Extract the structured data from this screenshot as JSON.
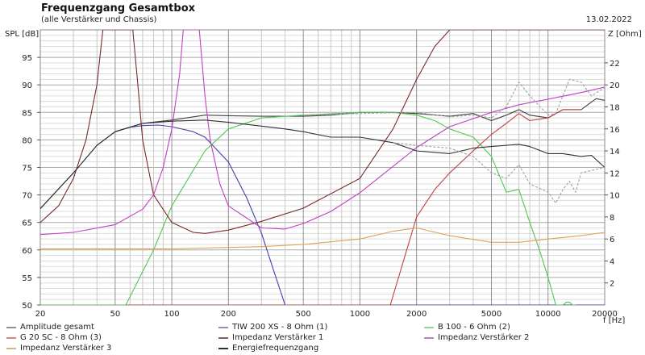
{
  "chart_data": {
    "type": "line",
    "title": "Frequenzgang Gesamtbox",
    "subtitle": "(alle Verstärker und Chassis)",
    "date": "13.02.2022",
    "ylabel": "SPL [dB]",
    "y2label": "Z [Ohm]",
    "xlabel": "f [Hz]",
    "xscale": "log",
    "xlim": [
      20,
      20000
    ],
    "ylim": [
      50,
      100
    ],
    "y2lim": [
      0,
      25
    ],
    "grid": true,
    "xticks": [
      "20",
      "50",
      "100",
      "200",
      "500",
      "1000",
      "2000",
      "5000",
      "10000",
      "20000"
    ],
    "yticks": [
      "50",
      "55",
      "60",
      "65",
      "70",
      "75",
      "80",
      "85",
      "90",
      "95"
    ],
    "y2ticks": [
      "2",
      "4",
      "6",
      "8",
      "10",
      "12",
      "14",
      "16",
      "18",
      "20",
      "22"
    ],
    "legend_position": "bottom",
    "series": [
      {
        "name": "Amplitude gesamt",
        "axis": "left",
        "color": "#404040",
        "legend_color": "#909090",
        "x": [
          20,
          30,
          40,
          50,
          70,
          100,
          150,
          200,
          300,
          500,
          700,
          1000,
          1500,
          2000,
          3000,
          4000,
          5000,
          6000,
          7000,
          8000,
          10000,
          12000,
          15000,
          18000,
          20000
        ],
        "y": [
          67.5,
          74,
          79,
          81.5,
          83,
          83.6,
          84.5,
          84.4,
          84.3,
          84.3,
          84.5,
          85,
          85,
          84.8,
          84.3,
          84.8,
          83.5,
          84.5,
          85.5,
          84.5,
          84,
          85.5,
          85.5,
          87.5,
          87.2
        ]
      },
      {
        "name": "TIW 200 XS - 8 Ohm (1)",
        "axis": "left",
        "color": "#4040b0",
        "legend_color": "#9090c0",
        "x": [
          50,
          60,
          70,
          85,
          100,
          130,
          150,
          200,
          250,
          300,
          350,
          400,
          20000
        ],
        "y": [
          81.5,
          82.3,
          82.6,
          82.7,
          82.4,
          81.5,
          80.5,
          76,
          69.5,
          63,
          56,
          50,
          50
        ]
      },
      {
        "name": "B 100 - 6 Ohm (2)",
        "axis": "left",
        "color": "#50c850",
        "legend_color": "#90d890",
        "x": [
          20,
          57,
          80,
          100,
          150,
          200,
          300,
          500,
          1000,
          1500,
          2000,
          2500,
          3000,
          4000,
          5000,
          6000,
          7000,
          8000,
          9000,
          10000,
          11000,
          12000,
          12500,
          13000,
          13500,
          14000
        ],
        "y": [
          50,
          50,
          60,
          68,
          78,
          82,
          84,
          84.5,
          85,
          85,
          84.5,
          83.5,
          82,
          80.5,
          77,
          70.5,
          71,
          65,
          60,
          55,
          50,
          50,
          50.5,
          50.5,
          50,
          50
        ]
      },
      {
        "name": "G 20 SC - 8 Ohm (3)",
        "axis": "left",
        "color": "#c04040",
        "legend_color": "#e08080",
        "x": [
          57,
          1450,
          2000,
          2500,
          3000,
          4000,
          5000,
          6000,
          7000,
          8000,
          10000,
          12000,
          15000
        ],
        "y": [
          50,
          50,
          66,
          71,
          74,
          78,
          81,
          83,
          84.8,
          83.5,
          84,
          85.5,
          85.5
        ]
      },
      {
        "name": "Impedanz Verstärker 1",
        "axis": "right",
        "color": "#7a2a2a",
        "legend_color": "#806060",
        "x": [
          20,
          25,
          30,
          35,
          40,
          43,
          46,
          55,
          62,
          66,
          70,
          80,
          100,
          130,
          150,
          200,
          300,
          500,
          1000,
          1500,
          2000,
          2500,
          3000,
          20000
        ],
        "y": [
          7.5,
          9,
          11.5,
          15,
          20,
          25,
          25,
          25,
          25,
          20,
          15,
          10,
          7.5,
          6.6,
          6.5,
          6.8,
          7.6,
          8.8,
          11.5,
          16,
          20.5,
          23.5,
          25,
          25
        ]
      },
      {
        "name": "Impedanz Verstärker 2",
        "axis": "right",
        "color": "#c040c0",
        "legend_color": "#c080c0",
        "x": [
          20,
          30,
          50,
          70,
          80,
          90,
          100,
          110,
          115,
          140,
          145,
          150,
          160,
          180,
          200,
          300,
          400,
          500,
          700,
          1000,
          2000,
          3000,
          5000,
          7000,
          10000,
          15000,
          20000
        ],
        "y": [
          6.4,
          6.6,
          7.3,
          8.7,
          10,
          12.5,
          16,
          21,
          25,
          25,
          22,
          19,
          15,
          11,
          9,
          7,
          6.9,
          7.4,
          8.5,
          10.2,
          14.3,
          16.2,
          17.5,
          18.2,
          18.7,
          19.3,
          19.8
        ]
      },
      {
        "name": "Impedanz Verstärker 3",
        "axis": "right",
        "color": "#e0a050",
        "legend_color": "#e0b080",
        "x": [
          20,
          100,
          300,
          500,
          1000,
          1500,
          2000,
          3000,
          5000,
          7000,
          10000,
          15000,
          20000
        ],
        "y": [
          5.1,
          5.1,
          5.3,
          5.5,
          6,
          6.7,
          7,
          6.3,
          5.7,
          5.7,
          6,
          6.3,
          6.6
        ]
      },
      {
        "name": "Energiefrequenzgang",
        "axis": "left",
        "color": "#303030",
        "legend_color": "#303030",
        "x": [
          20,
          30,
          40,
          50,
          70,
          100,
          150,
          200,
          300,
          400,
          500,
          700,
          1000,
          1500,
          2000,
          3000,
          4000,
          5000,
          7000,
          8000,
          10000,
          12000,
          15000,
          17000,
          20000
        ],
        "y": [
          67.5,
          74,
          79,
          81.5,
          83,
          83.4,
          83.6,
          83.2,
          82.5,
          82,
          81.5,
          80.5,
          80.5,
          79.5,
          78,
          77.5,
          78.5,
          78.8,
          79.2,
          78.8,
          77.5,
          77.5,
          77,
          77.2,
          75
        ]
      },
      {
        "name": "",
        "axis": "left",
        "color": "#a0a0a0",
        "dashed": true,
        "x": [
          500,
          1000,
          2000,
          3000,
          4000,
          5000,
          6000,
          7000,
          8000,
          10000,
          11000,
          12000,
          13000,
          15000,
          17000,
          20000
        ],
        "y": [
          84.5,
          84.8,
          85,
          84.2,
          84.5,
          84,
          86,
          90.5,
          88,
          84.5,
          84.8,
          88,
          91,
          90.5,
          88,
          89.5
        ]
      },
      {
        "name": "",
        "axis": "left",
        "color": "#a0a0a0",
        "dashed": true,
        "x": [
          1500,
          2000,
          3000,
          4000,
          5000,
          6000,
          7000,
          8000,
          10000,
          11000,
          12000,
          13000,
          14000,
          15000,
          20000
        ],
        "y": [
          79.5,
          79,
          78.5,
          77,
          74,
          73,
          75.5,
          72,
          70.5,
          68.5,
          71,
          72.5,
          70.5,
          74,
          75
        ]
      }
    ]
  }
}
